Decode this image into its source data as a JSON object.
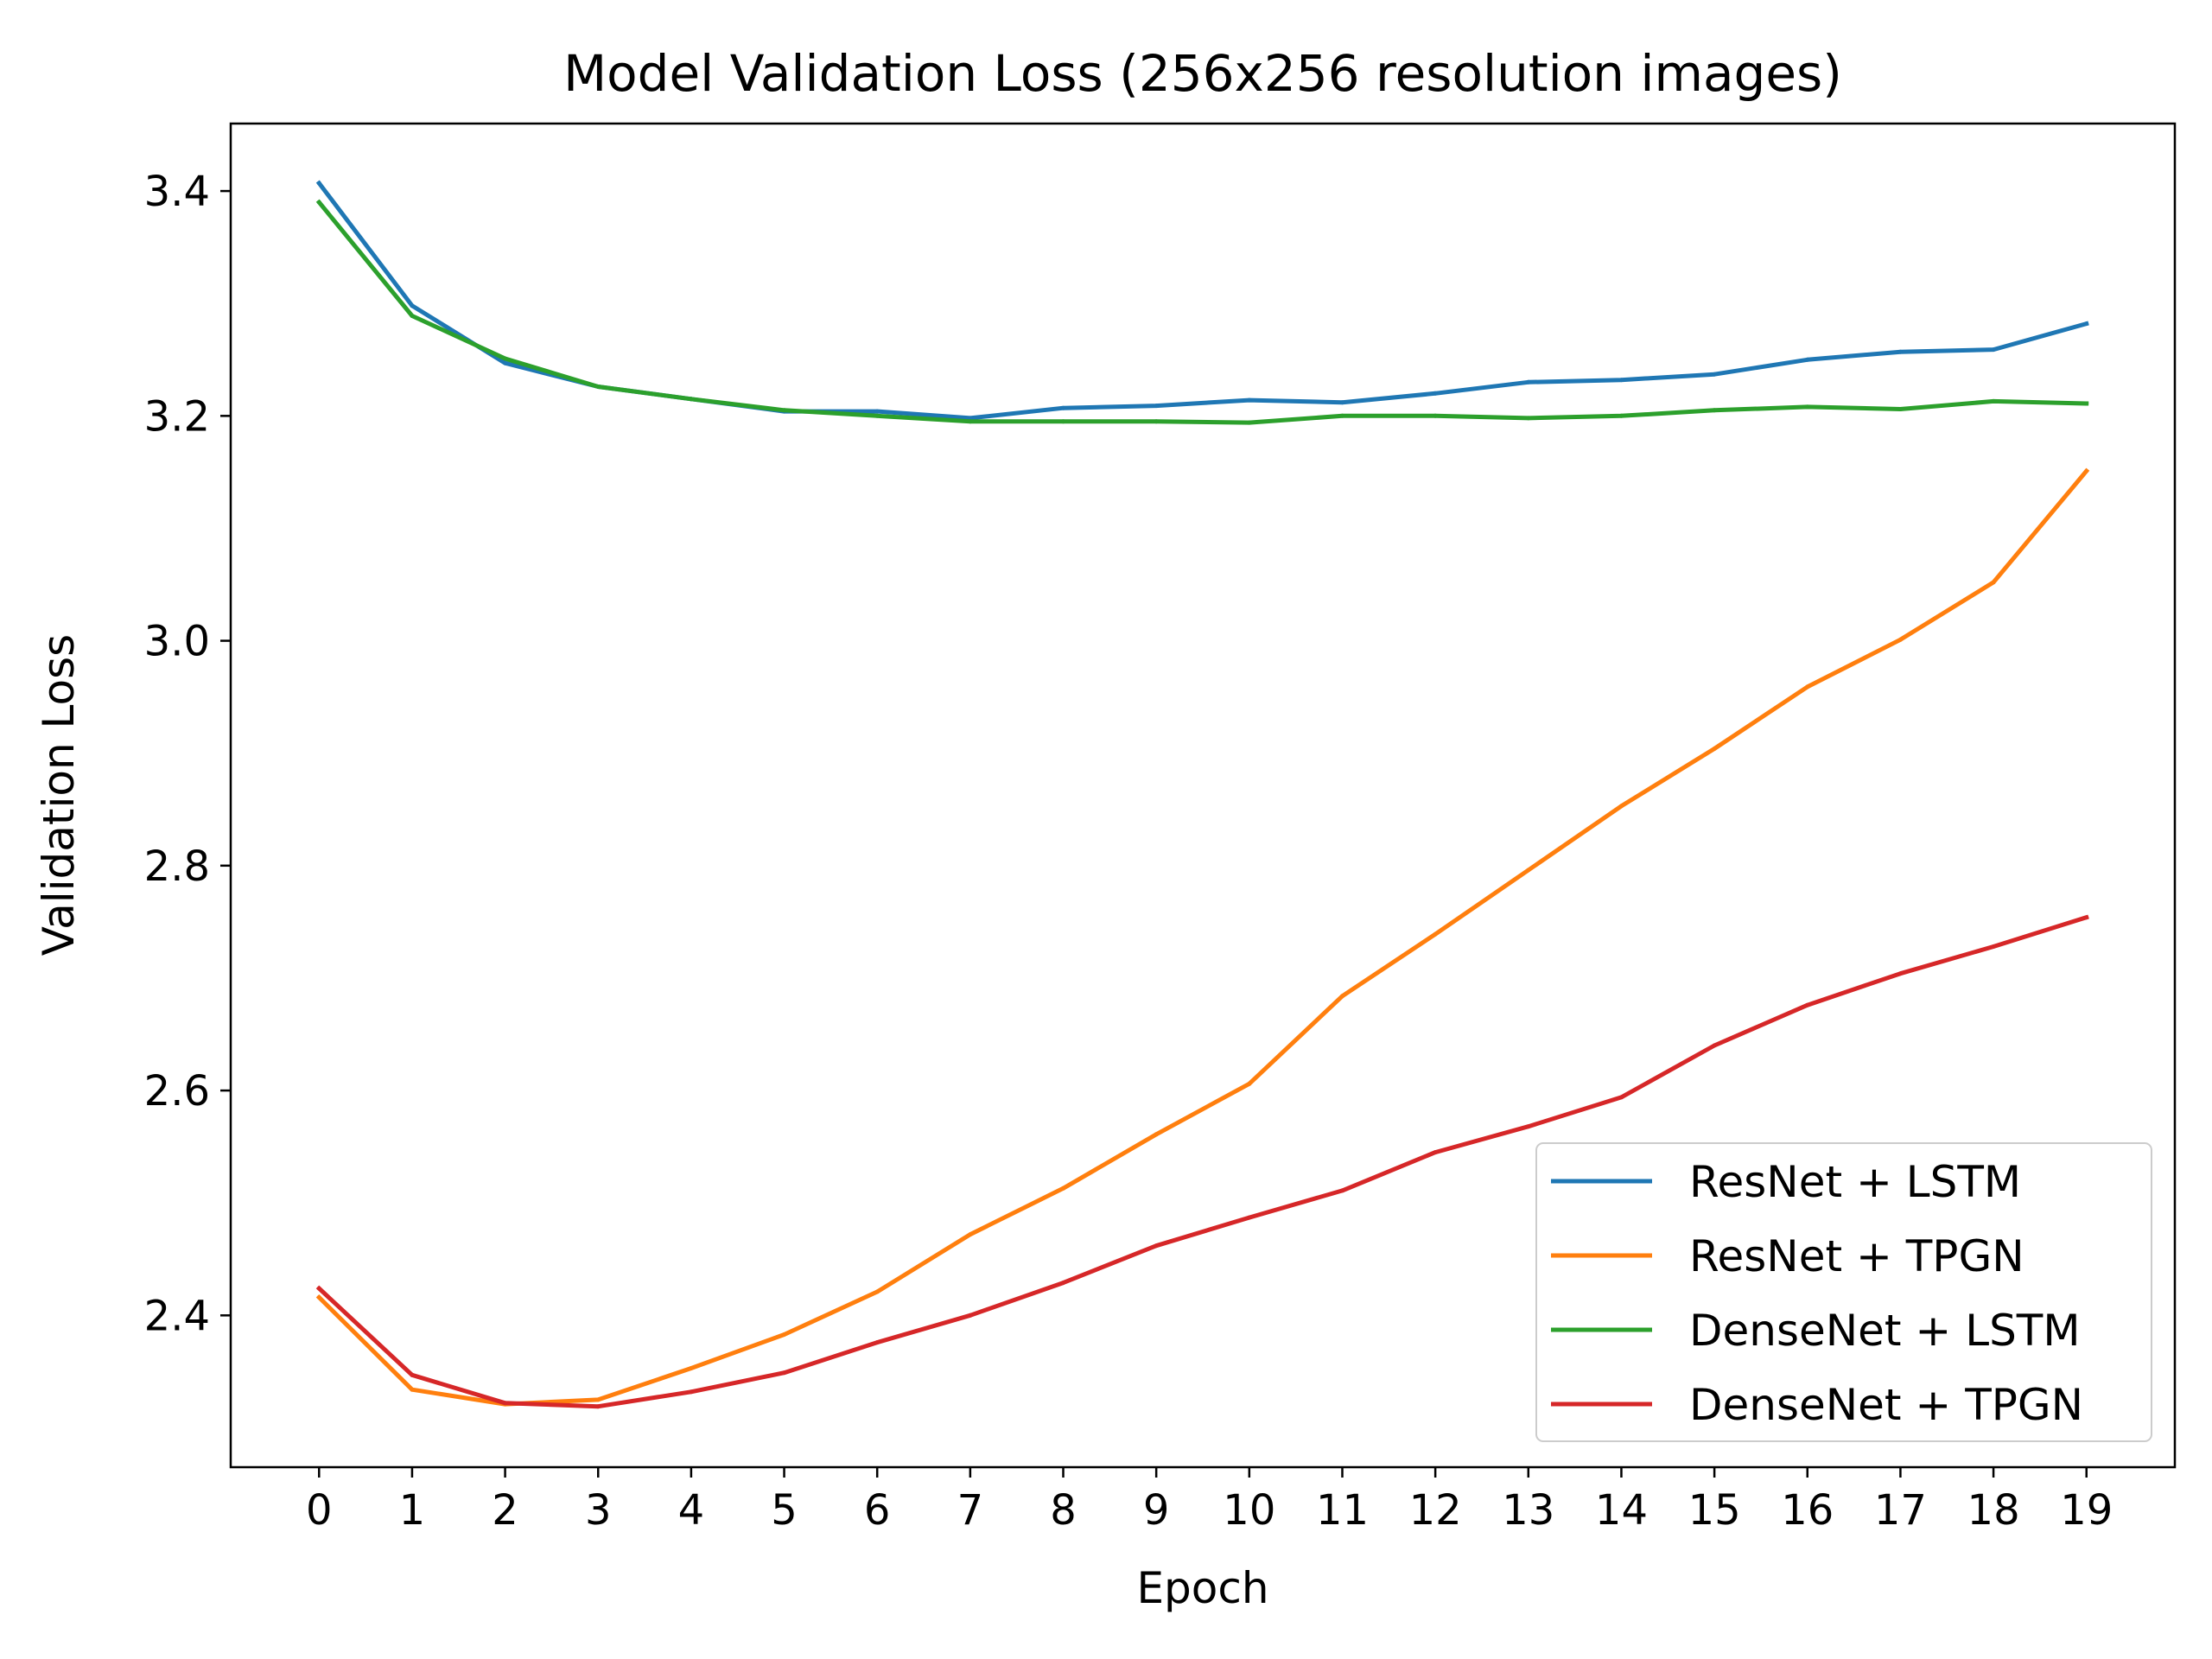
{
  "chart_data": {
    "type": "line",
    "title": "Model Validation Loss (256x256 resolution images)",
    "xlabel": "Epoch",
    "ylabel": "Validation Loss",
    "x": [
      0,
      1,
      2,
      3,
      4,
      5,
      6,
      7,
      8,
      9,
      10,
      11,
      12,
      13,
      14,
      15,
      16,
      17,
      18,
      19
    ],
    "xticks": [
      "0",
      "1",
      "2",
      "3",
      "4",
      "5",
      "6",
      "7",
      "8",
      "9",
      "10",
      "11",
      "12",
      "13",
      "14",
      "15",
      "16",
      "17",
      "18",
      "19"
    ],
    "yticks": [
      2.4,
      2.6,
      2.8,
      3.0,
      3.2,
      3.4
    ],
    "ytick_labels": [
      "2.4",
      "2.6",
      "2.8",
      "3.0",
      "3.2",
      "3.4"
    ],
    "xlim": [
      -0.95,
      19.95
    ],
    "ylim": [
      2.265,
      3.46
    ],
    "grid": false,
    "legend_position": "lower-right",
    "series": [
      {
        "name": "ResNet + LSTM",
        "color": "#1f77b4",
        "values": [
          3.407,
          3.298,
          3.247,
          3.226,
          3.215,
          3.204,
          3.204,
          3.198,
          3.207,
          3.209,
          3.214,
          3.212,
          3.22,
          3.23,
          3.232,
          3.237,
          3.25,
          3.257,
          3.259,
          3.282
        ]
      },
      {
        "name": "ResNet + TPGN",
        "color": "#ff7f0e",
        "values": [
          2.416,
          2.334,
          2.321,
          2.325,
          2.353,
          2.383,
          2.421,
          2.472,
          2.513,
          2.561,
          2.606,
          2.684,
          2.739,
          2.796,
          2.853,
          2.904,
          2.959,
          3.001,
          3.052,
          3.151
        ]
      },
      {
        "name": "DenseNet + LSTM",
        "color": "#2ca02c",
        "values": [
          3.39,
          3.289,
          3.251,
          3.226,
          3.215,
          3.205,
          3.2,
          3.195,
          3.195,
          3.195,
          3.194,
          3.2,
          3.2,
          3.198,
          3.2,
          3.205,
          3.208,
          3.206,
          3.213,
          3.211
        ]
      },
      {
        "name": "DenseNet + TPGN",
        "color": "#d62728",
        "values": [
          2.424,
          2.347,
          2.322,
          2.319,
          2.332,
          2.349,
          2.376,
          2.4,
          2.429,
          2.462,
          2.487,
          2.511,
          2.545,
          2.568,
          2.594,
          2.64,
          2.676,
          2.704,
          2.728,
          2.754
        ]
      }
    ]
  }
}
